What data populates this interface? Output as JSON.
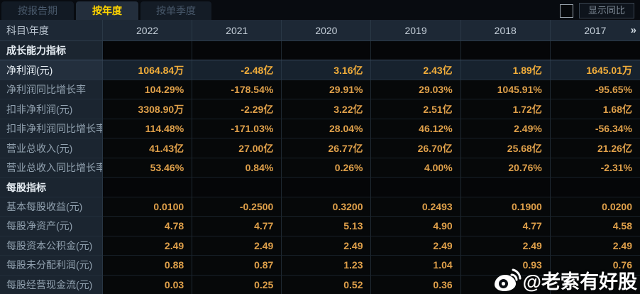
{
  "tabs": {
    "items": [
      {
        "label": "按报告期",
        "active": false
      },
      {
        "label": "按年度",
        "active": true
      },
      {
        "label": "按单季度",
        "active": false
      }
    ]
  },
  "controls": {
    "show_yoy_label": "显示同比",
    "checkbox_checked": false
  },
  "table": {
    "corner": "科目\\年度",
    "years": [
      "2022",
      "2021",
      "2020",
      "2019",
      "2018",
      "2017"
    ],
    "more_icon": "»",
    "rows": [
      {
        "type": "section",
        "label": "成长能力指标",
        "values": [
          "",
          "",
          "",
          "",
          "",
          ""
        ]
      },
      {
        "type": "highlight",
        "label": "净利润(元)",
        "values": [
          "1064.84万",
          "-2.48亿",
          "3.16亿",
          "2.43亿",
          "1.89亿",
          "1645.01万"
        ]
      },
      {
        "type": "data",
        "label": "净利润同比增长率",
        "values": [
          "104.29%",
          "-178.54%",
          "29.91%",
          "29.03%",
          "1045.91%",
          "-95.65%"
        ]
      },
      {
        "type": "data",
        "label": "扣非净利润(元)",
        "values": [
          "3308.90万",
          "-2.29亿",
          "3.22亿",
          "2.51亿",
          "1.72亿",
          "1.68亿"
        ]
      },
      {
        "type": "data",
        "label": "扣非净利润同比增长率",
        "values": [
          "114.48%",
          "-171.03%",
          "28.04%",
          "46.12%",
          "2.49%",
          "-56.34%"
        ]
      },
      {
        "type": "data",
        "label": "营业总收入(元)",
        "values": [
          "41.43亿",
          "27.00亿",
          "26.77亿",
          "26.70亿",
          "25.68亿",
          "21.26亿"
        ]
      },
      {
        "type": "data",
        "label": "营业总收入同比增长率",
        "values": [
          "53.46%",
          "0.84%",
          "0.26%",
          "4.00%",
          "20.76%",
          "-2.31%"
        ]
      },
      {
        "type": "section",
        "label": "每股指标",
        "values": [
          "",
          "",
          "",
          "",
          "",
          ""
        ]
      },
      {
        "type": "data",
        "label": "基本每股收益(元)",
        "values": [
          "0.0100",
          "-0.2500",
          "0.3200",
          "0.2493",
          "0.1900",
          "0.0200"
        ]
      },
      {
        "type": "data",
        "label": "每股净资产(元)",
        "values": [
          "4.78",
          "4.77",
          "5.13",
          "4.90",
          "4.77",
          "4.58"
        ]
      },
      {
        "type": "data",
        "label": "每股资本公积金(元)",
        "values": [
          "2.49",
          "2.49",
          "2.49",
          "2.49",
          "2.49",
          "2.49"
        ]
      },
      {
        "type": "data",
        "label": "每股未分配利润(元)",
        "values": [
          "0.88",
          "0.87",
          "1.23",
          "1.04",
          "0.93",
          "0.76"
        ]
      },
      {
        "type": "data",
        "label": "每股经营现金流(元)",
        "values": [
          "0.03",
          "0.25",
          "0.52",
          "0.36",
          "",
          ""
        ]
      }
    ]
  },
  "watermark": {
    "text": "@老索有好股",
    "icon": "weibo-icon"
  },
  "colors": {
    "accent_yellow": "#ffd400",
    "value_orange": "#dfa04a",
    "highlight_value_orange": "#f3ae3a",
    "highlight_row_bg": "#17222e",
    "label_column_bg": "#1b2530",
    "header_bg": "#1d2835",
    "page_bg": "#0a0e14"
  }
}
